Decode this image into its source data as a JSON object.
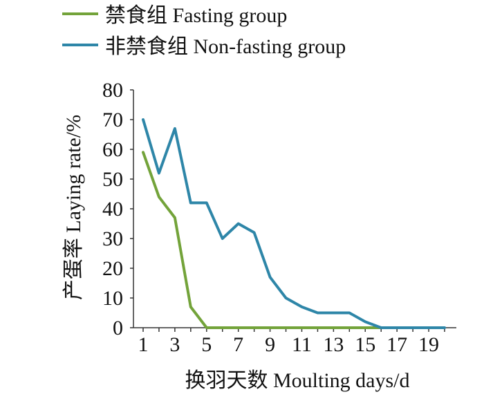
{
  "chart_data": {
    "type": "line",
    "xlabel": "换羽天数  Moulting days/d",
    "ylabel": "产蛋率  Laying rate/%",
    "xlim": [
      1,
      20
    ],
    "ylim": [
      0,
      80
    ],
    "x_ticks": [
      1,
      3,
      5,
      7,
      9,
      11,
      13,
      15,
      17,
      19
    ],
    "y_ticks": [
      0,
      10,
      20,
      30,
      40,
      50,
      60,
      70,
      80
    ],
    "legend_position": "top-left",
    "grid": false,
    "series": [
      {
        "name": "禁食组  Fasting group",
        "color": "#73A33A",
        "x": [
          1,
          2,
          3,
          4,
          5,
          6,
          7,
          8,
          9,
          10,
          11,
          12,
          13,
          14,
          15,
          16
        ],
        "y": [
          59,
          44,
          37,
          7,
          0,
          0,
          0,
          0,
          0,
          0,
          0,
          0,
          0,
          0,
          0,
          0
        ]
      },
      {
        "name": "非禁食组  Non-fasting group",
        "color": "#2E86A8",
        "x": [
          1,
          2,
          3,
          4,
          5,
          6,
          7,
          8,
          9,
          10,
          11,
          12,
          13,
          14,
          15,
          16,
          17,
          18,
          19,
          20
        ],
        "y": [
          70,
          52,
          67,
          42,
          42,
          30,
          35,
          32,
          17,
          10,
          7,
          5,
          5,
          5,
          2,
          0,
          0,
          0,
          0,
          0
        ]
      }
    ]
  }
}
